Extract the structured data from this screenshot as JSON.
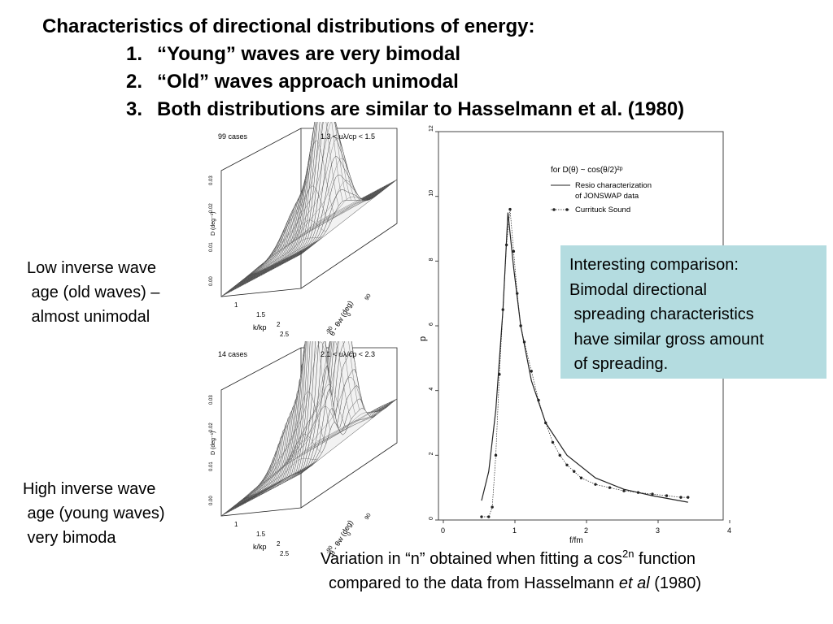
{
  "slide": {
    "title": "Characteristics of directional distributions of energy:",
    "bullets": [
      {
        "num": "1.",
        "text": "“Young” waves are very bimodal"
      },
      {
        "num": "2.",
        "text": "“Old” waves approach unimodal"
      },
      {
        "num": "3.",
        "text": "Both distributions are similar to Hasselmann et al. (1980)"
      }
    ],
    "low_label": "Low inverse wave\n age (old waves) –\n almost unimodal",
    "high_label": "High inverse wave\n age (young waves)\n very bimoda",
    "callout": "Interesting comparison:\nBimodal directional\n spreading characteristics\n have similar gross amount\n of spreading.",
    "caption": {
      "line1_pre": "Variation in “n”  obtained when fitting a cos",
      "line1_sup": "2n",
      "line1_post": " function",
      "line2_pre": "compared to the data from Hasselmann ",
      "line2_em": "et al",
      "line2_post": " (1980)"
    }
  },
  "surface_top": {
    "cases": "99 cases",
    "range": "1.3 < uλ/cp < 1.5",
    "zlabel": "D (deg⁻¹)",
    "z_ticks": [
      "0.03",
      "0.02",
      "0.01",
      "0.00"
    ],
    "k_label": "k/kp",
    "k_ticks": [
      "1",
      "1.5",
      "2",
      "2.5"
    ],
    "theta_label": "θ - θw (deg)",
    "theta_ticks": [
      "-90",
      "0",
      "90"
    ]
  },
  "surface_bottom": {
    "cases": "14 cases",
    "range": "2.1 < uλ/cp < 2.3",
    "zlabel": "D (deg⁻¹)",
    "z_ticks": [
      "0.03",
      "0.02",
      "0.01",
      "0.00"
    ],
    "k_label": "k/kp",
    "k_ticks": [
      "1",
      "1.5",
      "2",
      "2.5"
    ],
    "theta_label": "θ - θw (deg)",
    "theta_ticks": [
      "-90",
      "0",
      "90"
    ]
  },
  "chart_data": {
    "type": "line",
    "xlabel": "f/fm",
    "ylabel": "p",
    "xlim": [
      0,
      4
    ],
    "ylim": [
      0,
      12
    ],
    "x_ticks": [
      "0",
      "1",
      "2",
      "3",
      "4"
    ],
    "y_ticks": [
      "0",
      "2",
      "4",
      "6",
      "8",
      "10",
      "12"
    ],
    "legend_title": "for D(θ) ~ cos(θ/2)²ᵖ",
    "legend": "top-right",
    "series": [
      {
        "name": "Resio characterization of JONSWAP data",
        "style": "solid",
        "x": [
          0.6,
          0.7,
          0.8,
          0.9,
          0.97,
          1.05,
          1.15,
          1.3,
          1.5,
          1.8,
          2.2,
          2.6,
          3.0,
          3.5
        ],
        "y": [
          0.6,
          1.5,
          3.4,
          6.5,
          9.5,
          7.8,
          6.0,
          4.3,
          3.0,
          2.0,
          1.3,
          0.95,
          0.75,
          0.55
        ]
      },
      {
        "name": "Currituck Sound",
        "style": "dotted-markers",
        "x": [
          0.6,
          0.7,
          0.75,
          0.8,
          0.85,
          0.9,
          0.95,
          1.0,
          1.05,
          1.1,
          1.15,
          1.2,
          1.3,
          1.4,
          1.5,
          1.6,
          1.7,
          1.8,
          1.9,
          2.0,
          2.2,
          2.4,
          2.6,
          2.8,
          3.0,
          3.2,
          3.4,
          3.5
        ],
        "y": [
          0.1,
          0.1,
          0.4,
          2.0,
          4.5,
          6.5,
          8.5,
          9.6,
          8.3,
          7.0,
          6.0,
          5.5,
          4.6,
          3.7,
          3.0,
          2.4,
          2.0,
          1.7,
          1.5,
          1.3,
          1.1,
          1.0,
          0.9,
          0.85,
          0.8,
          0.75,
          0.7,
          0.7
        ]
      }
    ]
  }
}
